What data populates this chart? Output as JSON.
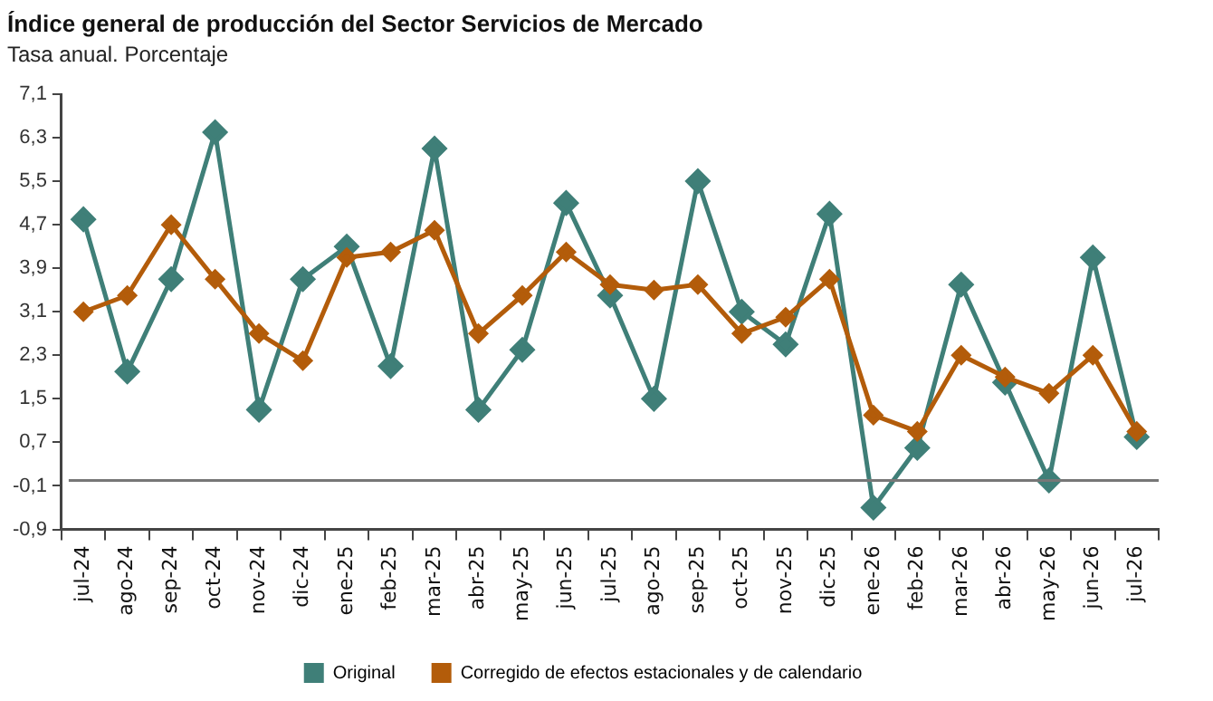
{
  "chart_data": {
    "type": "line",
    "title": "Índice general de producción del Sector Servicios de Mercado",
    "subtitle": "Tasa anual. Porcentaje",
    "categories": [
      "jul-24",
      "ago-24",
      "sep-24",
      "oct-24",
      "nov-24",
      "dic-24",
      "ene-25",
      "feb-25",
      "mar-25",
      "abr-25",
      "may-25",
      "jun-25",
      "jul-25",
      "ago-25",
      "sep-25",
      "oct-25",
      "nov-25",
      "dic-25",
      "ene-26",
      "feb-26",
      "mar-26",
      "abr-26",
      "may-26",
      "jun-26",
      "jul-26"
    ],
    "series": [
      {
        "name": "Original",
        "color": "#3f7f78",
        "values": [
          4.8,
          2.0,
          3.7,
          6.4,
          1.3,
          3.7,
          4.3,
          2.1,
          6.1,
          1.3,
          2.4,
          5.1,
          3.4,
          1.5,
          5.5,
          3.1,
          2.5,
          4.9,
          -0.5,
          0.6,
          3.6,
          1.8,
          0.0,
          4.1,
          0.8
        ]
      },
      {
        "name": "Corregido de efectos estacionales y de calendario",
        "color": "#b35c0a",
        "values": [
          3.1,
          3.4,
          4.7,
          3.7,
          2.7,
          2.2,
          4.1,
          4.2,
          4.6,
          2.7,
          3.4,
          4.2,
          3.6,
          3.5,
          3.6,
          2.7,
          3.0,
          3.7,
          1.2,
          0.9,
          2.3,
          1.9,
          1.6,
          2.3,
          0.9
        ]
      }
    ],
    "ylim": [
      -0.9,
      7.1
    ],
    "yticks": [
      {
        "value": -0.9,
        "label": "-0,9"
      },
      {
        "value": -0.1,
        "label": "-0,1"
      },
      {
        "value": 0.7,
        "label": "0,7"
      },
      {
        "value": 1.5,
        "label": "1,5"
      },
      {
        "value": 2.3,
        "label": "2,3"
      },
      {
        "value": 3.1,
        "label": "3,1"
      },
      {
        "value": 3.9,
        "label": "3,9"
      },
      {
        "value": 4.7,
        "label": "4,7"
      },
      {
        "value": 5.5,
        "label": "5,5"
      },
      {
        "value": 6.3,
        "label": "6,3"
      },
      {
        "value": 7.1,
        "label": "7,1"
      }
    ],
    "ref_lines": [
      {
        "axis": "y",
        "value": 0,
        "color": "#777777"
      }
    ],
    "grid": false,
    "legend": "bottom",
    "marker": "diamond",
    "line_style": "solid"
  }
}
